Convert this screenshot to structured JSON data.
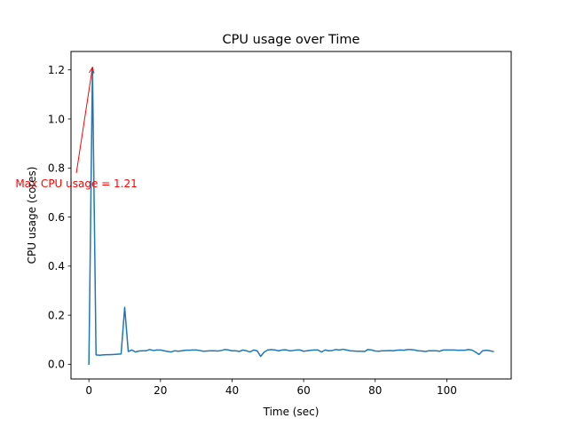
{
  "chart_data": {
    "type": "line",
    "title": "CPU usage over Time",
    "xlabel": "Time (sec)",
    "ylabel": "CPU usage (cores)",
    "xlim": [
      -5,
      118
    ],
    "ylim": [
      -0.06,
      1.275
    ],
    "xticks": [
      0,
      20,
      40,
      60,
      80,
      100
    ],
    "yticks": [
      0.0,
      0.2,
      0.4,
      0.6,
      0.8,
      1.0,
      1.2
    ],
    "xtick_labels": [
      "0",
      "20",
      "40",
      "60",
      "80",
      "100"
    ],
    "ytick_labels": [
      "0.0",
      "0.2",
      "0.4",
      "0.6",
      "0.8",
      "1.0",
      "1.2"
    ],
    "grid": false,
    "legend": null,
    "series": [
      {
        "color": "#1f77b4",
        "x": [
          0,
          1,
          2,
          3,
          4,
          5,
          6,
          7,
          8,
          9,
          10,
          11,
          12,
          13,
          14,
          15,
          16,
          17,
          18,
          19,
          20,
          21,
          22,
          23,
          24,
          25,
          26,
          27,
          28,
          29,
          30,
          31,
          32,
          33,
          34,
          35,
          36,
          37,
          38,
          39,
          40,
          41,
          42,
          43,
          44,
          45,
          46,
          47,
          48,
          49,
          50,
          51,
          52,
          53,
          54,
          55,
          56,
          57,
          58,
          59,
          60,
          61,
          62,
          63,
          64,
          65,
          66,
          67,
          68,
          69,
          70,
          71,
          72,
          73,
          74,
          75,
          76,
          77,
          78,
          79,
          80,
          81,
          82,
          83,
          84,
          85,
          86,
          87,
          88,
          89,
          90,
          91,
          92,
          93,
          94,
          95,
          96,
          97,
          98,
          99,
          100,
          101,
          102,
          103,
          104,
          105,
          106,
          107,
          108,
          109,
          110,
          111,
          112,
          113
        ],
        "y": [
          0.0,
          1.21,
          0.038,
          0.037,
          0.038,
          0.039,
          0.039,
          0.04,
          0.041,
          0.042,
          0.232,
          0.052,
          0.058,
          0.05,
          0.054,
          0.055,
          0.055,
          0.06,
          0.056,
          0.058,
          0.058,
          0.055,
          0.052,
          0.05,
          0.055,
          0.053,
          0.055,
          0.057,
          0.057,
          0.058,
          0.058,
          0.056,
          0.053,
          0.054,
          0.055,
          0.055,
          0.054,
          0.056,
          0.06,
          0.058,
          0.055,
          0.055,
          0.052,
          0.058,
          0.055,
          0.05,
          0.058,
          0.055,
          0.032,
          0.05,
          0.058,
          0.06,
          0.058,
          0.055,
          0.058,
          0.059,
          0.055,
          0.056,
          0.058,
          0.058,
          0.053,
          0.055,
          0.057,
          0.058,
          0.058,
          0.05,
          0.058,
          0.055,
          0.056,
          0.06,
          0.058,
          0.061,
          0.058,
          0.055,
          0.054,
          0.053,
          0.053,
          0.052,
          0.06,
          0.058,
          0.054,
          0.053,
          0.055,
          0.055,
          0.056,
          0.055,
          0.057,
          0.058,
          0.057,
          0.06,
          0.06,
          0.058,
          0.055,
          0.054,
          0.052,
          0.055,
          0.055,
          0.055,
          0.053,
          0.058,
          0.058,
          0.058,
          0.058,
          0.057,
          0.057,
          0.057,
          0.06,
          0.058,
          0.05,
          0.04,
          0.055,
          0.057,
          0.055,
          0.052
        ]
      }
    ],
    "annotations": [
      {
        "text": "Max CPU usage = 1.21",
        "color": "#ff0000",
        "xy": [
          1,
          1.21
        ],
        "xytext": [
          -3.5,
          0.78
        ]
      }
    ]
  }
}
